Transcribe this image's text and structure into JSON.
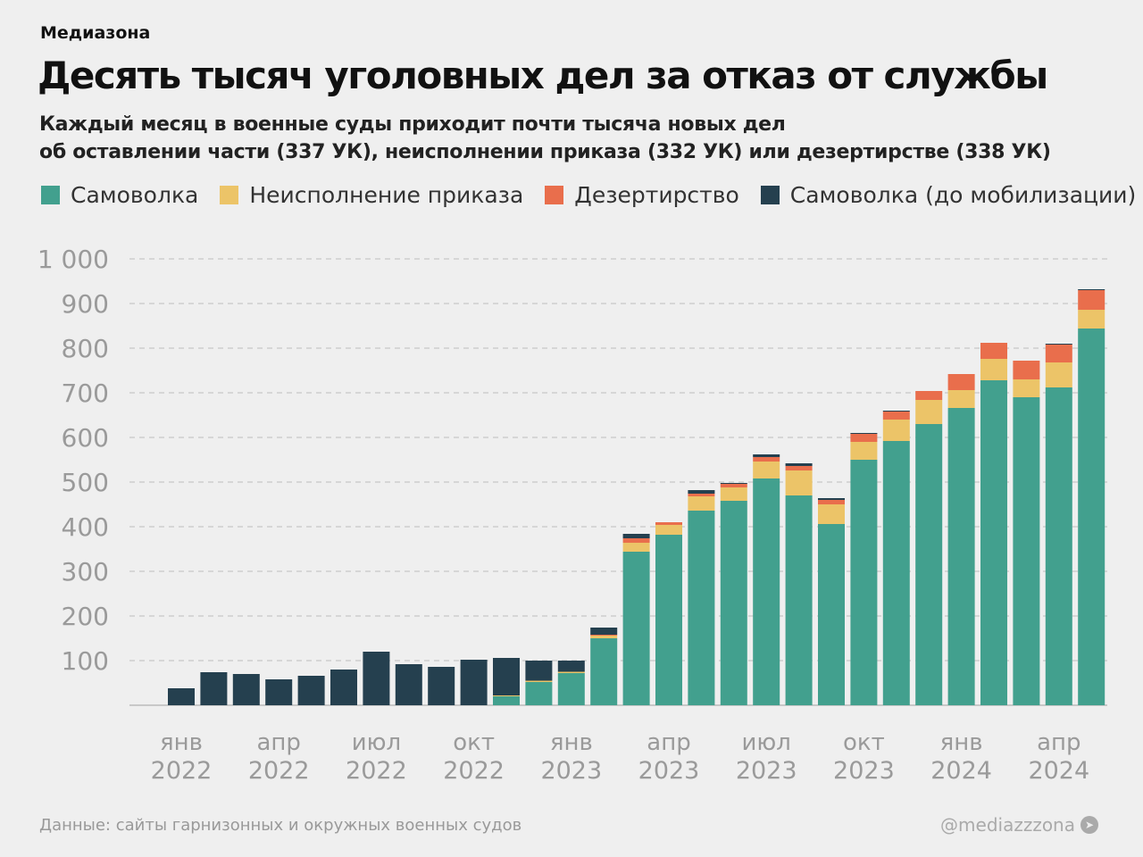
{
  "brand": "Медиазона",
  "title": "Десять тысяч уголовных дел за отказ от службы",
  "subtitle_lines": [
    "Каждый месяц в военные суды приходит почти тысяча новых дел",
    "об оставлении части (337 УК), неисполнении приказа (332 УК) или дезертирстве (338 УК)"
  ],
  "source": "Данные: сайты гарнизонных и окружных военных судов",
  "handle": "@mediazzzona",
  "handle_icon": "telegram-icon",
  "chart_data": {
    "type": "bar",
    "stacked": true,
    "ylim": [
      0,
      1000
    ],
    "yticks": [
      100,
      200,
      300,
      400,
      500,
      600,
      700,
      800,
      900,
      1000
    ],
    "ytick_labels": [
      "100",
      "200",
      "300",
      "400",
      "500",
      "600",
      "700",
      "800",
      "900",
      "1 000"
    ],
    "grid": true,
    "legend_placement": "top",
    "xtick_labels": [
      [
        "янв",
        "2022"
      ],
      [
        "апр",
        "2022"
      ],
      [
        "июл",
        "2022"
      ],
      [
        "окт",
        "2022"
      ],
      [
        "янв",
        "2023"
      ],
      [
        "апр",
        "2023"
      ],
      [
        "июл",
        "2023"
      ],
      [
        "окт",
        "2023"
      ],
      [
        "янв",
        "2024"
      ],
      [
        "апр",
        "2024"
      ]
    ],
    "categories": [
      "2022-01",
      "2022-02",
      "2022-03",
      "2022-04",
      "2022-05",
      "2022-06",
      "2022-07",
      "2022-08",
      "2022-09",
      "2022-10",
      "2022-11",
      "2022-12",
      "2023-01",
      "2023-02",
      "2023-03",
      "2023-04",
      "2023-05",
      "2023-06",
      "2023-07",
      "2023-08",
      "2023-09",
      "2023-10",
      "2023-11",
      "2023-12",
      "2024-01",
      "2024-02",
      "2024-03",
      "2024-04",
      "2024-05"
    ],
    "series": [
      {
        "name": "Самоволка",
        "color": "#42a08e",
        "values": [
          0,
          0,
          0,
          0,
          0,
          0,
          0,
          0,
          0,
          0,
          20,
          52,
          72,
          150,
          344,
          382,
          436,
          458,
          508,
          470,
          406,
          550,
          592,
          630,
          666,
          728,
          690,
          712,
          844
        ]
      },
      {
        "name": "Неисполнение приказа",
        "color": "#ecc468",
        "values": [
          0,
          0,
          0,
          0,
          0,
          0,
          0,
          0,
          0,
          0,
          2,
          3,
          3,
          6,
          20,
          22,
          32,
          30,
          38,
          56,
          44,
          40,
          48,
          54,
          40,
          48,
          40,
          56,
          42
        ]
      },
      {
        "name": "Дезертирство",
        "color": "#e96e4c",
        "values": [
          0,
          0,
          0,
          0,
          0,
          0,
          0,
          0,
          0,
          0,
          0,
          0,
          0,
          2,
          10,
          6,
          6,
          8,
          10,
          10,
          10,
          18,
          18,
          20,
          36,
          36,
          42,
          40,
          44
        ]
      },
      {
        "name": "Самоволка (до мобилизации)",
        "color": "#25404f",
        "values": [
          38,
          74,
          70,
          58,
          66,
          80,
          120,
          92,
          86,
          102,
          84,
          45,
          25,
          16,
          10,
          0,
          8,
          2,
          6,
          6,
          4,
          2,
          2,
          0,
          0,
          0,
          0,
          2,
          2
        ]
      }
    ]
  }
}
